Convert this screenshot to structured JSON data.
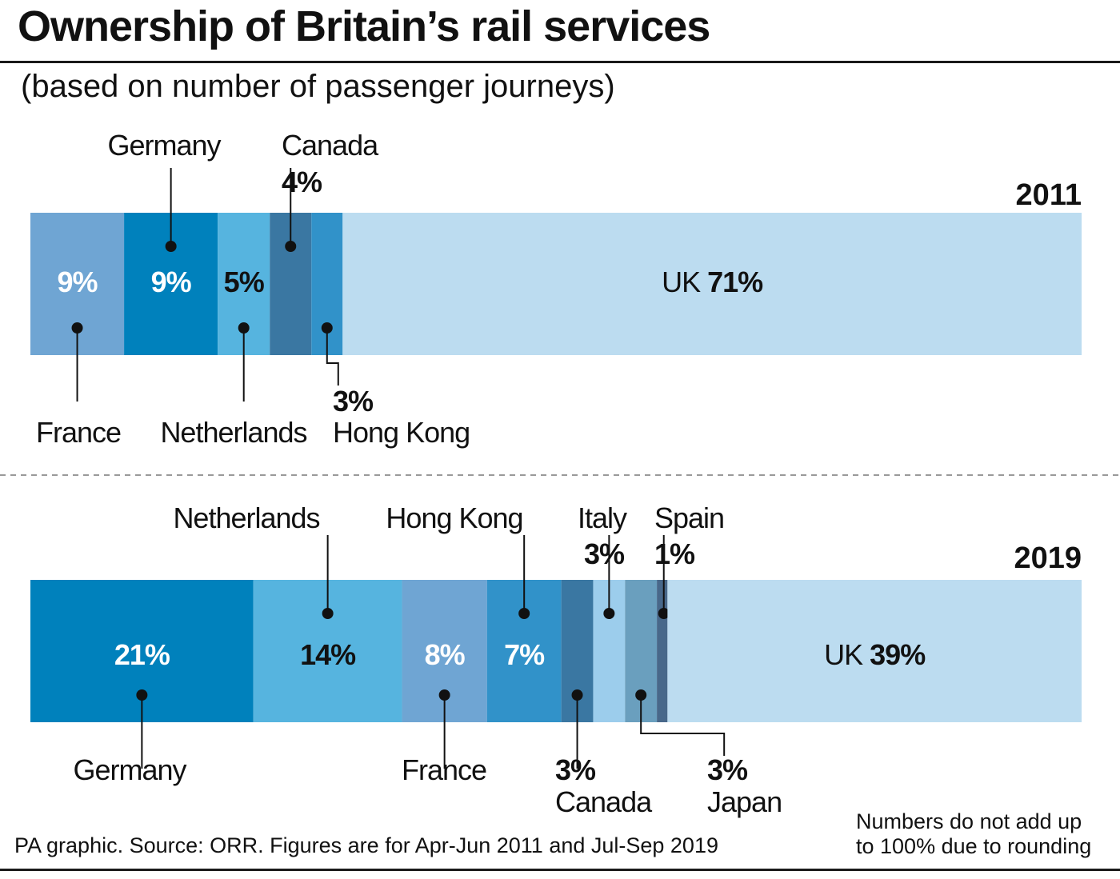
{
  "title": "Ownership of Britain’s rail services",
  "subtitle": "(based on number of passenger journeys)",
  "source": "PA graphic. Source: ORR. Figures are for Apr-Jun 2011 and Jul-Sep 2019",
  "footnote_line1": "Numbers do not add up",
  "footnote_line2": "to 100% due to rounding",
  "chart_data": [
    {
      "type": "bar",
      "orientation": "horizontal-stacked",
      "year": "2011",
      "unit": "%",
      "segments": [
        {
          "name": "France",
          "value": 9,
          "label": "9%",
          "color": "#6fa5d3",
          "label_inside": true,
          "inside_text_color": "#ffffff"
        },
        {
          "name": "Germany",
          "value": 9,
          "label": "9%",
          "color": "#0081bc",
          "label_inside": true,
          "inside_text_color": "#ffffff"
        },
        {
          "name": "Netherlands",
          "value": 5,
          "label": "5%",
          "color": "#56b4df",
          "label_inside": true,
          "inside_text_color": "#111111"
        },
        {
          "name": "Canada",
          "value": 4,
          "label": "4%",
          "color": "#3a77a2",
          "label_inside": false
        },
        {
          "name": "Hong Kong",
          "value": 3,
          "label": "3%",
          "color": "#3192c9",
          "label_inside": false
        },
        {
          "name": "UK",
          "value": 71,
          "label": "71%",
          "color": "#bcdcf0",
          "label_inside": true,
          "inside_text_color": "#111111"
        }
      ]
    },
    {
      "type": "bar",
      "orientation": "horizontal-stacked",
      "year": "2019",
      "unit": "%",
      "segments": [
        {
          "name": "Germany",
          "value": 21,
          "label": "21%",
          "color": "#0081bc",
          "label_inside": true,
          "inside_text_color": "#ffffff"
        },
        {
          "name": "Netherlands",
          "value": 14,
          "label": "14%",
          "color": "#56b4df",
          "label_inside": true,
          "inside_text_color": "#111111"
        },
        {
          "name": "France",
          "value": 8,
          "label": "8%",
          "color": "#6fa5d3",
          "label_inside": true,
          "inside_text_color": "#ffffff"
        },
        {
          "name": "Hong Kong",
          "value": 7,
          "label": "7%",
          "color": "#3192c9",
          "label_inside": true,
          "inside_text_color": "#ffffff"
        },
        {
          "name": "Canada",
          "value": 3,
          "label": "3%",
          "color": "#3a77a2",
          "label_inside": false
        },
        {
          "name": "Italy",
          "value": 3,
          "label": "3%",
          "color": "#9ccdec",
          "label_inside": false
        },
        {
          "name": "Japan",
          "value": 3,
          "label": "3%",
          "color": "#6a9fbe",
          "label_inside": false
        },
        {
          "name": "Spain",
          "value": 1,
          "label": "1%",
          "color": "#48688a",
          "label_inside": false
        },
        {
          "name": "UK",
          "value": 39,
          "label": "39%",
          "color": "#bcdcf0",
          "label_inside": true,
          "inside_text_color": "#111111"
        }
      ]
    }
  ]
}
